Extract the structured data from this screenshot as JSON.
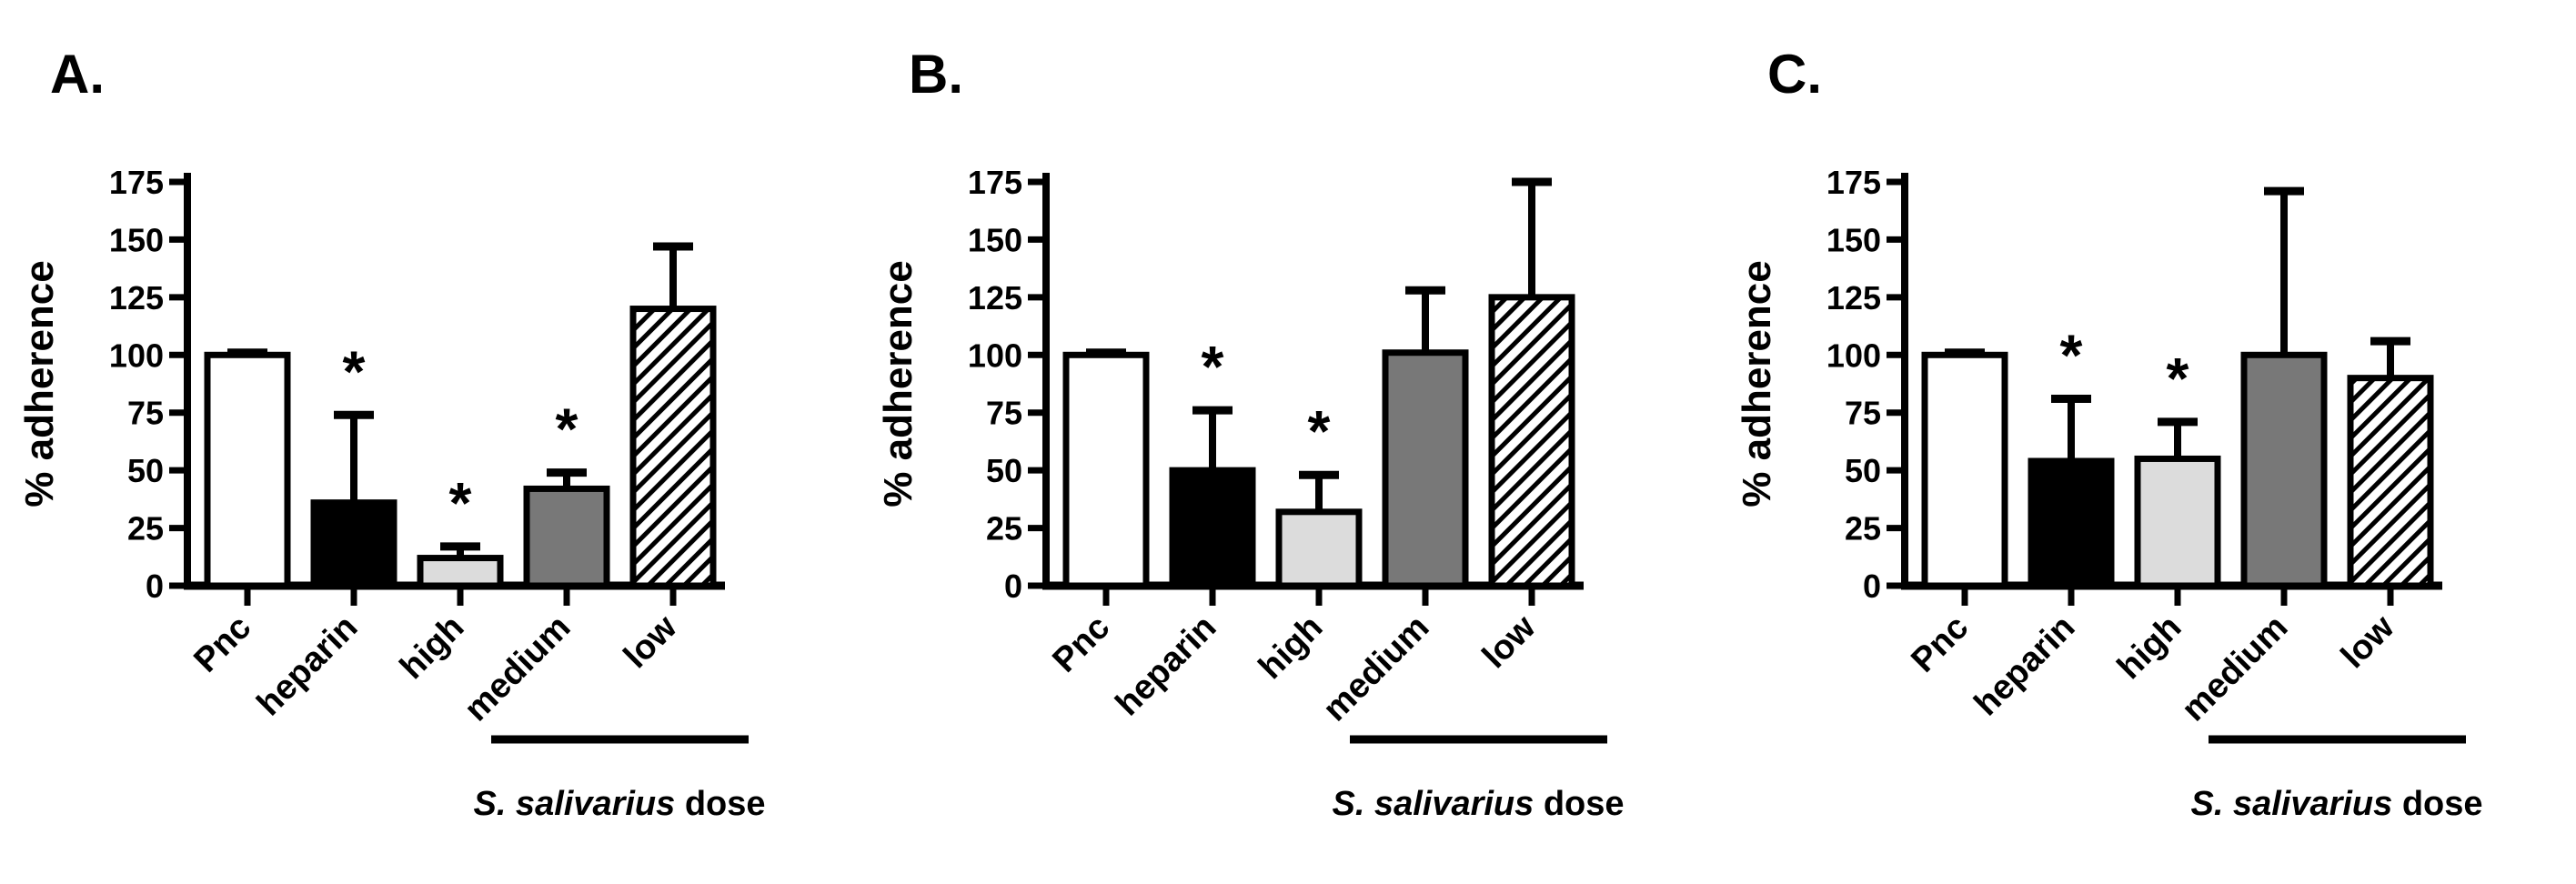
{
  "figure": {
    "background": "#ffffff",
    "ink_color": "#000000"
  },
  "palette": {
    "open_fill": "#ffffff",
    "solid_black_fill": "#000000",
    "light_gray_fill": "#dcdcdc",
    "dark_gray_fill": "#787878",
    "outline": "#000000",
    "hatch_stroke": "#000000"
  },
  "chart_data": [
    {
      "type": "bar",
      "panel_label": "A.",
      "ylabel": "% adherence",
      "ylim": [
        0,
        175
      ],
      "yticks": [
        0,
        25,
        50,
        75,
        100,
        125,
        150,
        175
      ],
      "grid": "off",
      "categories": [
        "Pnc",
        "heparin",
        "high",
        "medium",
        "low"
      ],
      "values": [
        100,
        36,
        12,
        42,
        120
      ],
      "errors_upper": [
        1,
        38,
        5,
        7,
        27
      ],
      "significance": [
        "",
        "*",
        "*",
        "*",
        ""
      ],
      "bar_styles": [
        "open",
        "solid-black",
        "light-gray",
        "dark-gray",
        "hatched"
      ],
      "group_annotation": {
        "label_italic": "S. salivarius",
        "label_regular": " dose",
        "covers_categories": [
          "high",
          "medium",
          "low"
        ]
      }
    },
    {
      "type": "bar",
      "panel_label": "B.",
      "ylabel": "% adherence",
      "ylim": [
        0,
        175
      ],
      "yticks": [
        0,
        25,
        50,
        75,
        100,
        125,
        150,
        175
      ],
      "grid": "off",
      "categories": [
        "Pnc",
        "heparin",
        "high",
        "medium",
        "low"
      ],
      "values": [
        100,
        50,
        32,
        101,
        125
      ],
      "errors_upper": [
        1,
        26,
        16,
        27,
        50
      ],
      "significance": [
        "",
        "*",
        "*",
        "",
        ""
      ],
      "bar_styles": [
        "open",
        "solid-black",
        "light-gray",
        "dark-gray",
        "hatched"
      ],
      "group_annotation": {
        "label_italic": "S. salivarius",
        "label_regular": " dose",
        "covers_categories": [
          "high",
          "medium",
          "low"
        ]
      }
    },
    {
      "type": "bar",
      "panel_label": "C.",
      "ylabel": "% adherence",
      "ylim": [
        0,
        175
      ],
      "yticks": [
        0,
        25,
        50,
        75,
        100,
        125,
        150,
        175
      ],
      "grid": "off",
      "categories": [
        "Pnc",
        "heparin",
        "high",
        "medium",
        "low"
      ],
      "values": [
        100,
        54,
        55,
        100,
        90
      ],
      "errors_upper": [
        1,
        27,
        16,
        71,
        16
      ],
      "significance": [
        "",
        "*",
        "*",
        "",
        ""
      ],
      "bar_styles": [
        "open",
        "solid-black",
        "light-gray",
        "dark-gray",
        "hatched"
      ],
      "group_annotation": {
        "label_italic": "S. salivarius",
        "label_regular": " dose",
        "covers_categories": [
          "high",
          "medium",
          "low"
        ]
      }
    }
  ]
}
